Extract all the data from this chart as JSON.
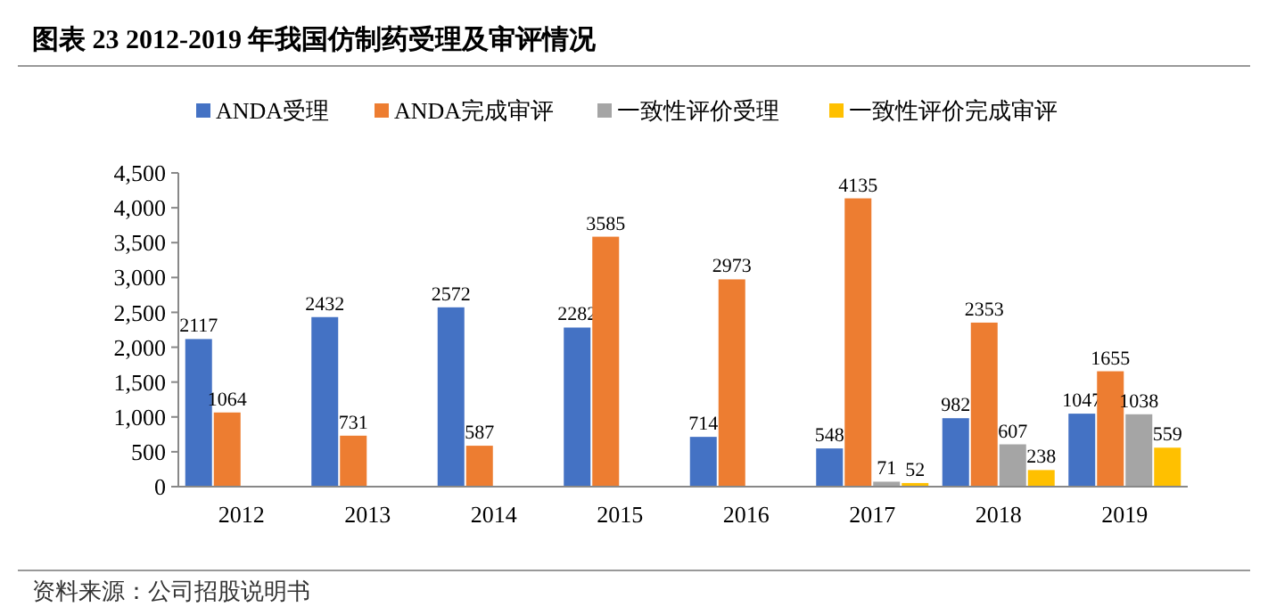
{
  "chart_data": {
    "type": "bar",
    "title": "图表  23 2012-2019 年我国仿制药受理及审评情况",
    "categories": [
      "2012",
      "2013",
      "2014",
      "2015",
      "2016",
      "2017",
      "2018",
      "2019"
    ],
    "series": [
      {
        "name": "ANDA受理",
        "color": "#4472c4",
        "values": [
          2117,
          2432,
          2572,
          2282,
          714,
          548,
          982,
          1047
        ]
      },
      {
        "name": "ANDA完成审评",
        "color": "#ed7d31",
        "values": [
          1064,
          731,
          587,
          3585,
          2973,
          4135,
          2353,
          1655
        ]
      },
      {
        "name": "一致性评价受理",
        "color": "#a5a5a5",
        "values": [
          null,
          null,
          null,
          null,
          null,
          71,
          607,
          1038
        ]
      },
      {
        "name": "一致性评价完成审评",
        "color": "#ffc000",
        "values": [
          null,
          null,
          null,
          null,
          null,
          52,
          238,
          559
        ]
      }
    ],
    "ylim": [
      0,
      4500
    ],
    "yticks": [
      {
        "value": 0,
        "label": "0"
      },
      {
        "value": 500,
        "label": "500"
      },
      {
        "value": 1000,
        "label": "1,000"
      },
      {
        "value": 1500,
        "label": "1,500"
      },
      {
        "value": 2000,
        "label": "2,000"
      },
      {
        "value": 2500,
        "label": "2,500"
      },
      {
        "value": 3000,
        "label": "3,000"
      },
      {
        "value": 3500,
        "label": "3,500"
      },
      {
        "value": 4000,
        "label": "4,000"
      },
      {
        "value": 4500,
        "label": "4,500"
      }
    ],
    "grid": false,
    "legend": "top",
    "data_labels": true,
    "annotations": [
      "资料来源：公司招股说明书"
    ]
  }
}
